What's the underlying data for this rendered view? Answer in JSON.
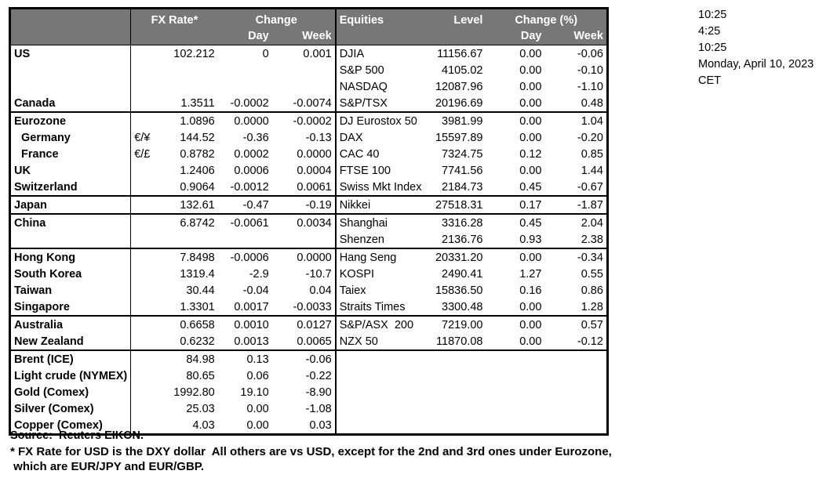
{
  "clock": {
    "time_1": "10:25",
    "time_2": "4:25",
    "time_3": "10:25",
    "date": "Monday, April 10, 2023",
    "timezone": "CET"
  },
  "fx_header": {
    "rate": "FX Rate*",
    "change": "Change",
    "day": "Day",
    "week": "Week"
  },
  "equities_header": {
    "title": "Equities",
    "level": "Level",
    "change_pct": "Change (%)",
    "day": "Day",
    "week": "Week"
  },
  "rows": [
    {
      "fx_label": "US",
      "fx_pair": "",
      "fx_rate": "102.212",
      "fx_day": "0",
      "fx_week": "0.001",
      "eq_name": "DJIA",
      "eq_level": "11156.67",
      "eq_day": "0.00",
      "eq_week": "-0.06",
      "group_top": false,
      "indent": false
    },
    {
      "fx_label": "",
      "fx_pair": "",
      "fx_rate": "",
      "fx_day": "",
      "fx_week": "",
      "eq_name": "S&P 500",
      "eq_level": "4105.02",
      "eq_day": "0.00",
      "eq_week": "-0.10",
      "group_top": false,
      "indent": false
    },
    {
      "fx_label": "",
      "fx_pair": "",
      "fx_rate": "",
      "fx_day": "",
      "fx_week": "",
      "eq_name": "NASDAQ",
      "eq_level": "12087.96",
      "eq_day": "0.00",
      "eq_week": "-1.10",
      "group_top": false,
      "indent": false
    },
    {
      "fx_label": "Canada",
      "fx_pair": "",
      "fx_rate": "1.3511",
      "fx_day": "-0.0002",
      "fx_week": "-0.0074",
      "eq_name": "S&P/TSX",
      "eq_level": "20196.69",
      "eq_day": "0.00",
      "eq_week": "0.48",
      "group_top": false,
      "indent": false
    },
    {
      "fx_label": "Eurozone",
      "fx_pair": "",
      "fx_rate": "1.0896",
      "fx_day": "0.0000",
      "fx_week": "-0.0002",
      "eq_name": "DJ Eurostox 50",
      "eq_level": "3981.99",
      "eq_day": "0.00",
      "eq_week": "1.04",
      "group_top": true,
      "indent": false
    },
    {
      "fx_label": "Germany",
      "fx_pair": "€/¥",
      "fx_rate": "144.52",
      "fx_day": "-0.36",
      "fx_week": "-0.13",
      "eq_name": "DAX",
      "eq_level": "15597.89",
      "eq_day": "0.00",
      "eq_week": "-0.20",
      "group_top": false,
      "indent": true
    },
    {
      "fx_label": "France",
      "fx_pair": "€/£",
      "fx_rate": "0.8782",
      "fx_day": "0.0002",
      "fx_week": "0.0000",
      "eq_name": "CAC 40",
      "eq_level": "7324.75",
      "eq_day": "0.12",
      "eq_week": "0.85",
      "group_top": false,
      "indent": true
    },
    {
      "fx_label": "UK",
      "fx_pair": "",
      "fx_rate": "1.2406",
      "fx_day": "0.0006",
      "fx_week": "0.0004",
      "eq_name": "FTSE 100",
      "eq_level": "7741.56",
      "eq_day": "0.00",
      "eq_week": "1.44",
      "group_top": false,
      "indent": false
    },
    {
      "fx_label": "Switzerland",
      "fx_pair": "",
      "fx_rate": "0.9064",
      "fx_day": "-0.0012",
      "fx_week": "0.0061",
      "eq_name": "Swiss Mkt Index",
      "eq_level": "2184.73",
      "eq_day": "0.45",
      "eq_week": "-0.67",
      "group_top": false,
      "indent": false
    },
    {
      "fx_label": "Japan",
      "fx_pair": "",
      "fx_rate": "132.61",
      "fx_day": "-0.47",
      "fx_week": "-0.19",
      "eq_name": "Nikkei",
      "eq_level": "27518.31",
      "eq_day": "0.17",
      "eq_week": "-1.87",
      "group_top": true,
      "indent": false
    },
    {
      "fx_label": "China",
      "fx_pair": "",
      "fx_rate": "6.8742",
      "fx_day": "-0.0061",
      "fx_week": "0.0034",
      "eq_name": "Shanghai",
      "eq_level": "3316.28",
      "eq_day": "0.45",
      "eq_week": "2.04",
      "group_top": true,
      "indent": false
    },
    {
      "fx_label": "",
      "fx_pair": "",
      "fx_rate": "",
      "fx_day": "",
      "fx_week": "",
      "eq_name": "Shenzen",
      "eq_level": "2136.76",
      "eq_day": "0.93",
      "eq_week": "2.38",
      "group_top": false,
      "indent": false
    },
    {
      "fx_label": "Hong Kong",
      "fx_pair": "",
      "fx_rate": "7.8498",
      "fx_day": "-0.0006",
      "fx_week": "0.0000",
      "eq_name": "Hang Seng",
      "eq_level": "20331.20",
      "eq_day": "0.00",
      "eq_week": "-0.34",
      "group_top": true,
      "indent": false
    },
    {
      "fx_label": "South Korea",
      "fx_pair": "",
      "fx_rate": "1319.4",
      "fx_day": "-2.9",
      "fx_week": "-10.7",
      "eq_name": "KOSPI",
      "eq_level": "2490.41",
      "eq_day": "1.27",
      "eq_week": "0.55",
      "group_top": false,
      "indent": false
    },
    {
      "fx_label": "Taiwan",
      "fx_pair": "",
      "fx_rate": "30.44",
      "fx_day": "-0.04",
      "fx_week": "0.04",
      "eq_name": "Taiex",
      "eq_level": "15836.50",
      "eq_day": "0.16",
      "eq_week": "0.86",
      "group_top": false,
      "indent": false
    },
    {
      "fx_label": "Singapore",
      "fx_pair": "",
      "fx_rate": "1.3301",
      "fx_day": "0.0017",
      "fx_week": "-0.0033",
      "eq_name": "Straits Times",
      "eq_level": "3300.48",
      "eq_day": "0.00",
      "eq_week": "1.28",
      "group_top": false,
      "indent": false
    },
    {
      "fx_label": "Australia",
      "fx_pair": "",
      "fx_rate": "0.6658",
      "fx_day": "0.0010",
      "fx_week": "0.0127",
      "eq_name": "S&P/ASX  200",
      "eq_level": "7219.00",
      "eq_day": "0.00",
      "eq_week": "0.57",
      "group_top": true,
      "indent": false
    },
    {
      "fx_label": "New Zealand",
      "fx_pair": "",
      "fx_rate": "0.6232",
      "fx_day": "0.0013",
      "fx_week": "0.0065",
      "eq_name": "NZX 50",
      "eq_level": "11870.08",
      "eq_day": "0.00",
      "eq_week": "-0.12",
      "group_top": false,
      "indent": false
    },
    {
      "fx_label": "Brent (ICE)",
      "fx_pair": "",
      "fx_rate": "84.98",
      "fx_day": "0.13",
      "fx_week": "-0.06",
      "eq_name": "",
      "eq_level": "",
      "eq_day": "",
      "eq_week": "",
      "group_top": true,
      "indent": false
    },
    {
      "fx_label": "Light crude (NYMEX)",
      "fx_pair": "",
      "fx_rate": "80.65",
      "fx_day": "0.06",
      "fx_week": "-0.22",
      "eq_name": "",
      "eq_level": "",
      "eq_day": "",
      "eq_week": "",
      "group_top": false,
      "indent": false
    },
    {
      "fx_label": "Gold (Comex)",
      "fx_pair": "",
      "fx_rate": "1992.80",
      "fx_day": "19.10",
      "fx_week": "-8.90",
      "eq_name": "",
      "eq_level": "",
      "eq_day": "",
      "eq_week": "",
      "group_top": false,
      "indent": false
    },
    {
      "fx_label": "Silver (Comex)",
      "fx_pair": "",
      "fx_rate": "25.03",
      "fx_day": "0.00",
      "fx_week": "-1.08",
      "eq_name": "",
      "eq_level": "",
      "eq_day": "",
      "eq_week": "",
      "group_top": false,
      "indent": false
    },
    {
      "fx_label": "Copper (Comex)",
      "fx_pair": "",
      "fx_rate": "4.03",
      "fx_day": "0.00",
      "fx_week": "0.03",
      "eq_name": "",
      "eq_level": "",
      "eq_day": "",
      "eq_week": "",
      "group_top": false,
      "indent": false
    }
  ],
  "footer": {
    "source": "Source:  Reuters EIKON.",
    "footnote_line1": "* FX Rate for USD is the DXY dollar  All others are vs USD, except for the 2nd and 3rd ones under Eurozone,",
    "footnote_line2": " which are EUR/JPY and EUR/GBP."
  },
  "colors": {
    "header_bg": "#777777",
    "header_text": "#ffffff",
    "border": "#000000"
  }
}
